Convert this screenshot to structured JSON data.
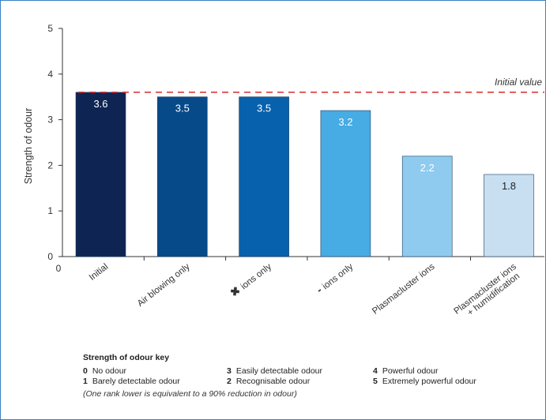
{
  "chart_data": {
    "type": "bar",
    "categories": [
      "Initial",
      "Air blowing only",
      "ions only",
      "ions only",
      "Plasmacluster ions",
      "Plasmacluster ions\n+ humidification"
    ],
    "category_symbols": [
      "",
      "",
      "✖",
      "-",
      "",
      ""
    ],
    "values": [
      3.6,
      3.5,
      3.5,
      3.2,
      2.2,
      1.8
    ],
    "value_labels": [
      "3.6",
      "3.5",
      "3.5",
      "3.2",
      "2.2",
      "1.8"
    ],
    "bar_colors": [
      "#0e2554",
      "#074a8a",
      "#0761ad",
      "#46ace3",
      "#8ecbef",
      "#c8dff2"
    ],
    "label_colors": [
      "#ffffff",
      "#ffffff",
      "#ffffff",
      "#ffffff",
      "#ffffff",
      "#222222"
    ],
    "ylabel": "Strength of odour",
    "ylim": [
      0,
      5
    ],
    "yticks": [
      "0",
      "1",
      "2",
      "3",
      "4",
      "5"
    ],
    "x_origin_label": "0",
    "reference_line": {
      "value": 3.6,
      "label": "Initial value",
      "color": "#d62b2b"
    }
  },
  "key": {
    "title": "Strength of odour key",
    "rows": [
      [
        {
          "num": "0",
          "text": "No odour"
        },
        {
          "num": "3",
          "text": "Easily detectable odour"
        },
        {
          "num": "4",
          "text": "Powerful odour"
        }
      ],
      [
        {
          "num": "1",
          "text": "Barely detectable odour"
        },
        {
          "num": "2",
          "text": "Recognisable odour"
        },
        {
          "num": "5",
          "text": "Extremely powerful odour"
        }
      ]
    ],
    "note": "(One rank lower is equivalent to a 90% reduction in odour)"
  }
}
